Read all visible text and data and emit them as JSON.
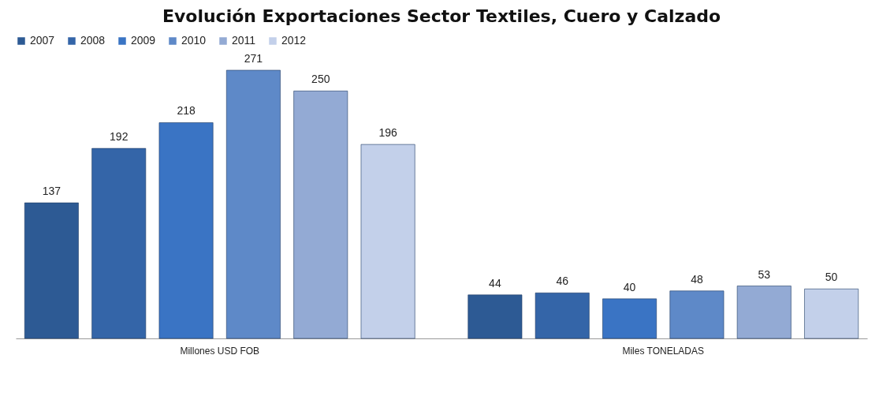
{
  "chart_data": {
    "type": "bar",
    "title": "Evolución Exportaciones Sector Textiles, Cuero y Calzado",
    "categories": [
      "Millones USD FOB",
      "Miles TONELADAS"
    ],
    "series": [
      {
        "name": "2007",
        "color": "#2d5a94",
        "values": [
          137,
          44
        ]
      },
      {
        "name": "2008",
        "color": "#3465a8",
        "values": [
          192,
          46
        ]
      },
      {
        "name": "2009",
        "color": "#3a74c4",
        "values": [
          218,
          40
        ]
      },
      {
        "name": "2010",
        "color": "#5e89c8",
        "values": [
          271,
          48
        ]
      },
      {
        "name": "2011",
        "color": "#93aad4",
        "values": [
          250,
          53
        ]
      },
      {
        "name": "2012",
        "color": "#c3d0ea",
        "values": [
          196,
          50
        ]
      }
    ],
    "data_labels": true,
    "legend": "top"
  }
}
